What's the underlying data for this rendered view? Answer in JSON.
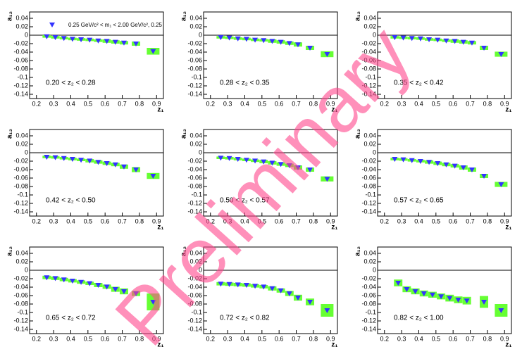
{
  "watermark": "Preliminary",
  "chart_data": [
    {
      "type": "scatter",
      "legend": "0.25 GeV/c² < m₁ < 2.00 GeV/c², 0.25",
      "label": "0.20 < z₂ < 0.28",
      "xlabel": "z₁",
      "ylabel": "a₁₂",
      "color": "#3333ff",
      "box_color": "#66ff33",
      "x": [
        0.26,
        0.31,
        0.36,
        0.41,
        0.46,
        0.51,
        0.56,
        0.61,
        0.66,
        0.71,
        0.78,
        0.88
      ],
      "values": [
        -0.003,
        -0.005,
        -0.007,
        -0.009,
        -0.01,
        -0.011,
        -0.013,
        -0.014,
        -0.016,
        -0.018,
        -0.02,
        -0.038
      ],
      "sys": [
        0.003,
        0.003,
        0.003,
        0.003,
        0.003,
        0.003,
        0.003,
        0.004,
        0.004,
        0.004,
        0.005,
        0.008
      ],
      "xlim": [
        0.16,
        0.94
      ],
      "ylim": [
        -0.15,
        0.055
      ],
      "xticks": [
        0.2,
        0.3,
        0.4,
        0.5,
        0.6,
        0.7,
        0.8,
        0.9
      ],
      "yticks": [
        0.04,
        0.02,
        0,
        -0.02,
        -0.04,
        -0.06,
        -0.08,
        -0.1,
        -0.12,
        -0.14
      ]
    },
    {
      "type": "scatter",
      "label": "0.28 < z₂ < 0.35",
      "xlabel": "z₁",
      "ylabel": "a₁₂",
      "color": "#3333ff",
      "box_color": "#66ff33",
      "x": [
        0.26,
        0.31,
        0.36,
        0.41,
        0.46,
        0.51,
        0.56,
        0.61,
        0.66,
        0.71,
        0.78,
        0.88
      ],
      "values": [
        -0.005,
        -0.006,
        -0.008,
        -0.009,
        -0.011,
        -0.012,
        -0.014,
        -0.016,
        -0.019,
        -0.022,
        -0.03,
        -0.045
      ],
      "sys": [
        0.003,
        0.003,
        0.003,
        0.003,
        0.003,
        0.003,
        0.004,
        0.004,
        0.004,
        0.005,
        0.005,
        0.007
      ],
      "xlim": [
        0.16,
        0.94
      ],
      "ylim": [
        -0.15,
        0.055
      ],
      "xticks": [
        0.2,
        0.3,
        0.4,
        0.5,
        0.6,
        0.7,
        0.8,
        0.9
      ],
      "yticks": [
        0.04,
        0.02,
        0,
        -0.02,
        -0.04,
        -0.06,
        -0.08,
        -0.1,
        -0.12,
        -0.14
      ]
    },
    {
      "type": "scatter",
      "label": "0.35 < z₂ < 0.42",
      "xlabel": "z₁",
      "ylabel": "a₁₂",
      "color": "#3333ff",
      "box_color": "#66ff33",
      "x": [
        0.26,
        0.31,
        0.36,
        0.41,
        0.46,
        0.51,
        0.56,
        0.61,
        0.66,
        0.71,
        0.78,
        0.88
      ],
      "values": [
        -0.005,
        -0.006,
        -0.007,
        -0.008,
        -0.01,
        -0.011,
        -0.013,
        -0.014,
        -0.016,
        -0.018,
        -0.03,
        -0.045
      ],
      "sys": [
        0.003,
        0.003,
        0.003,
        0.003,
        0.003,
        0.003,
        0.003,
        0.004,
        0.004,
        0.004,
        0.005,
        0.006
      ],
      "xlim": [
        0.16,
        0.94
      ],
      "ylim": [
        -0.15,
        0.055
      ],
      "xticks": [
        0.2,
        0.3,
        0.4,
        0.5,
        0.6,
        0.7,
        0.8,
        0.9
      ],
      "yticks": [
        0.04,
        0.02,
        0,
        -0.02,
        -0.04,
        -0.06,
        -0.08,
        -0.1,
        -0.12,
        -0.14
      ]
    },
    {
      "type": "scatter",
      "label": "0.42 < z₂ < 0.50",
      "xlabel": "z₁",
      "ylabel": "a₁₂",
      "color": "#3333ff",
      "box_color": "#66ff33",
      "x": [
        0.26,
        0.31,
        0.36,
        0.41,
        0.46,
        0.51,
        0.56,
        0.61,
        0.66,
        0.71,
        0.78,
        0.88
      ],
      "values": [
        -0.01,
        -0.011,
        -0.013,
        -0.015,
        -0.017,
        -0.019,
        -0.022,
        -0.025,
        -0.028,
        -0.033,
        -0.04,
        -0.055
      ],
      "sys": [
        0.003,
        0.003,
        0.003,
        0.003,
        0.003,
        0.004,
        0.004,
        0.004,
        0.004,
        0.005,
        0.006,
        0.007
      ],
      "xlim": [
        0.16,
        0.94
      ],
      "ylim": [
        -0.15,
        0.055
      ],
      "xticks": [
        0.2,
        0.3,
        0.4,
        0.5,
        0.6,
        0.7,
        0.8,
        0.9
      ],
      "yticks": [
        0.04,
        0.02,
        0,
        -0.02,
        -0.04,
        -0.06,
        -0.08,
        -0.1,
        -0.12,
        -0.14
      ]
    },
    {
      "type": "scatter",
      "label": "0.50 < z₂ < 0.57",
      "xlabel": "z₁",
      "ylabel": "a₁₂",
      "color": "#3333ff",
      "box_color": "#66ff33",
      "x": [
        0.26,
        0.31,
        0.36,
        0.41,
        0.46,
        0.51,
        0.56,
        0.61,
        0.66,
        0.71,
        0.78,
        0.88
      ],
      "values": [
        -0.012,
        -0.013,
        -0.015,
        -0.017,
        -0.019,
        -0.021,
        -0.024,
        -0.027,
        -0.03,
        -0.035,
        -0.04,
        -0.062
      ],
      "sys": [
        0.003,
        0.003,
        0.003,
        0.003,
        0.003,
        0.004,
        0.004,
        0.004,
        0.004,
        0.005,
        0.005,
        0.006
      ],
      "xlim": [
        0.16,
        0.94
      ],
      "ylim": [
        -0.15,
        0.055
      ],
      "xticks": [
        0.2,
        0.3,
        0.4,
        0.5,
        0.6,
        0.7,
        0.8,
        0.9
      ],
      "yticks": [
        0.04,
        0.02,
        0,
        -0.02,
        -0.04,
        -0.06,
        -0.08,
        -0.1,
        -0.12,
        -0.14
      ]
    },
    {
      "type": "scatter",
      "label": "0.57 < z₂ < 0.65",
      "xlabel": "z₁",
      "ylabel": "a₁₂",
      "color": "#3333ff",
      "box_color": "#66ff33",
      "x": [
        0.26,
        0.31,
        0.36,
        0.41,
        0.46,
        0.51,
        0.56,
        0.61,
        0.66,
        0.71,
        0.78,
        0.88
      ],
      "values": [
        -0.015,
        -0.016,
        -0.018,
        -0.02,
        -0.022,
        -0.025,
        -0.028,
        -0.031,
        -0.035,
        -0.04,
        -0.055,
        -0.075
      ],
      "sys": [
        0.003,
        0.003,
        0.003,
        0.003,
        0.004,
        0.004,
        0.004,
        0.004,
        0.005,
        0.005,
        0.005,
        0.006
      ],
      "xlim": [
        0.16,
        0.94
      ],
      "ylim": [
        -0.15,
        0.055
      ],
      "xticks": [
        0.2,
        0.3,
        0.4,
        0.5,
        0.6,
        0.7,
        0.8,
        0.9
      ],
      "yticks": [
        0.04,
        0.02,
        0,
        -0.02,
        -0.04,
        -0.06,
        -0.08,
        -0.1,
        -0.12,
        -0.14
      ]
    },
    {
      "type": "scatter",
      "label": "0.65 < z₂ < 0.72",
      "xlabel": "z₁",
      "ylabel": "a₁₂",
      "color": "#3333ff",
      "box_color": "#66ff33",
      "x": [
        0.26,
        0.31,
        0.36,
        0.41,
        0.46,
        0.51,
        0.56,
        0.61,
        0.66,
        0.71,
        0.78,
        0.88
      ],
      "values": [
        -0.017,
        -0.019,
        -0.022,
        -0.025,
        -0.028,
        -0.031,
        -0.035,
        -0.039,
        -0.045,
        -0.05,
        -0.055,
        -0.075
      ],
      "sys": [
        0.004,
        0.004,
        0.004,
        0.004,
        0.004,
        0.004,
        0.005,
        0.005,
        0.006,
        0.007,
        0.006,
        0.02
      ],
      "xlim": [
        0.16,
        0.94
      ],
      "ylim": [
        -0.15,
        0.055
      ],
      "xticks": [
        0.2,
        0.3,
        0.4,
        0.5,
        0.6,
        0.7,
        0.8,
        0.9
      ],
      "yticks": [
        0.04,
        0.02,
        0,
        -0.02,
        -0.04,
        -0.06,
        -0.08,
        -0.1,
        -0.12,
        -0.14
      ]
    },
    {
      "type": "scatter",
      "label": "0.72 < z₂ < 0.82",
      "xlabel": "z₁",
      "ylabel": "a₁₂",
      "color": "#3333ff",
      "box_color": "#66ff33",
      "x": [
        0.26,
        0.31,
        0.36,
        0.41,
        0.46,
        0.51,
        0.56,
        0.61,
        0.66,
        0.71,
        0.78,
        0.88
      ],
      "values": [
        -0.032,
        -0.033,
        -0.034,
        -0.035,
        -0.037,
        -0.039,
        -0.043,
        -0.048,
        -0.055,
        -0.065,
        -0.075,
        -0.095
      ],
      "sys": [
        0.004,
        0.004,
        0.004,
        0.004,
        0.004,
        0.004,
        0.005,
        0.005,
        0.006,
        0.007,
        0.008,
        0.015
      ],
      "xlim": [
        0.16,
        0.94
      ],
      "ylim": [
        -0.15,
        0.055
      ],
      "xticks": [
        0.2,
        0.3,
        0.4,
        0.5,
        0.6,
        0.7,
        0.8,
        0.9
      ],
      "yticks": [
        0.04,
        0.02,
        0,
        -0.02,
        -0.04,
        -0.06,
        -0.08,
        -0.1,
        -0.12,
        -0.14
      ]
    },
    {
      "type": "scatter",
      "label": "0.82 < z₂ < 1.00",
      "xlabel": "z₁",
      "ylabel": "a₁₂",
      "color": "#3333ff",
      "box_color": "#66ff33",
      "x": [
        0.28,
        0.33,
        0.38,
        0.43,
        0.48,
        0.53,
        0.58,
        0.63,
        0.68,
        0.78,
        0.88
      ],
      "values": [
        -0.03,
        -0.045,
        -0.05,
        -0.055,
        -0.058,
        -0.062,
        -0.066,
        -0.07,
        -0.072,
        -0.075,
        -0.095
      ],
      "sys": [
        0.008,
        0.007,
        0.007,
        0.007,
        0.007,
        0.007,
        0.008,
        0.008,
        0.009,
        0.014,
        0.015
      ],
      "xlim": [
        0.16,
        0.94
      ],
      "ylim": [
        -0.15,
        0.055
      ],
      "xticks": [
        0.2,
        0.3,
        0.4,
        0.5,
        0.6,
        0.7,
        0.8,
        0.9
      ],
      "yticks": [
        0.04,
        0.02,
        0,
        -0.02,
        -0.04,
        -0.06,
        -0.08,
        -0.1,
        -0.12,
        -0.14
      ]
    }
  ]
}
